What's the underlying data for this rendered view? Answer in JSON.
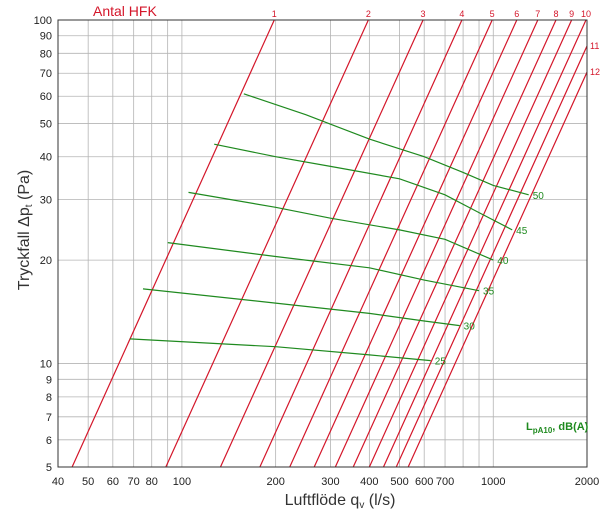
{
  "chart_data": {
    "type": "line",
    "title": "Antal HFK",
    "xlabel": "Luftflöde q",
    "xlabel_sub": "v",
    "xlabel_unit": " (l/s)",
    "ylabel": "Tryckfall Δp",
    "ylabel_sub": "t",
    "ylabel_unit": " (Pa)",
    "xscale": "log",
    "yscale": "log",
    "xlim": [
      40,
      2000
    ],
    "ylim": [
      5,
      100
    ],
    "grid": true,
    "x_ticks": [
      {
        "value": 40,
        "label": "40"
      },
      {
        "value": 50,
        "label": "50"
      },
      {
        "value": 60,
        "label": "60"
      },
      {
        "value": 70,
        "label": "70"
      },
      {
        "value": 80,
        "label": "80"
      },
      {
        "value": 100,
        "label": "100"
      },
      {
        "value": 200,
        "label": "200"
      },
      {
        "value": 300,
        "label": "300"
      },
      {
        "value": 400,
        "label": "400"
      },
      {
        "value": 500,
        "label": "500"
      },
      {
        "value": 600,
        "label": "600"
      },
      {
        "value": 700,
        "label": "700"
      },
      {
        "value": 1000,
        "label": "1000"
      },
      {
        "value": 2000,
        "label": "2000"
      }
    ],
    "x_minor_grid": [
      90,
      800,
      900
    ],
    "y_ticks": [
      5,
      6,
      7,
      8,
      9,
      10,
      20,
      30,
      40,
      50,
      60,
      70,
      80,
      90,
      100
    ],
    "colors": {
      "red": "#d4162a",
      "green": "#1f8a1f",
      "grid": "#b4b4b4",
      "axis": "#333333"
    },
    "red_series": [
      {
        "name": "1",
        "x1": 44.4,
        "y1": 5,
        "x2": 198,
        "y2": 100
      },
      {
        "name": "2",
        "x1": 88.8,
        "y1": 5,
        "x2": 397,
        "y2": 100
      },
      {
        "name": "3",
        "x1": 133,
        "y1": 5,
        "x2": 595,
        "y2": 100
      },
      {
        "name": "4",
        "x1": 178,
        "y1": 5,
        "x2": 793,
        "y2": 100
      },
      {
        "name": "5",
        "x1": 222,
        "y1": 5,
        "x2": 992,
        "y2": 100
      },
      {
        "name": "6",
        "x1": 266,
        "y1": 5,
        "x2": 1190,
        "y2": 100
      },
      {
        "name": "7",
        "x1": 311,
        "y1": 5,
        "x2": 1390,
        "y2": 100
      },
      {
        "name": "8",
        "x1": 355,
        "y1": 5,
        "x2": 1590,
        "y2": 100
      },
      {
        "name": "9",
        "x1": 400,
        "y1": 5,
        "x2": 1785,
        "y2": 100
      },
      {
        "name": "10",
        "x1": 444,
        "y1": 5,
        "x2": 1985,
        "y2": 100
      },
      {
        "name": "11",
        "x1": 488,
        "y1": 5,
        "x2": 2000,
        "y2": 84
      },
      {
        "name": "12",
        "x1": 533,
        "y1": 5,
        "x2": 2000,
        "y2": 70.5
      }
    ],
    "green_series": [
      {
        "name": "50",
        "points": [
          [
            158,
            61
          ],
          [
            250,
            53
          ],
          [
            400,
            45
          ],
          [
            600,
            40
          ],
          [
            800,
            36
          ],
          [
            1000,
            33
          ],
          [
            1300,
            31
          ]
        ]
      },
      {
        "name": "45",
        "points": [
          [
            127,
            43.5
          ],
          [
            200,
            40
          ],
          [
            300,
            37.5
          ],
          [
            500,
            34.5
          ],
          [
            700,
            31
          ],
          [
            900,
            27.5
          ],
          [
            1150,
            24.5
          ]
        ]
      },
      {
        "name": "40",
        "points": [
          [
            105,
            31.5
          ],
          [
            200,
            28.5
          ],
          [
            300,
            26.5
          ],
          [
            500,
            24.5
          ],
          [
            700,
            23
          ],
          [
            1000,
            20
          ]
        ]
      },
      {
        "name": "35",
        "points": [
          [
            90,
            22.5
          ],
          [
            200,
            20.5
          ],
          [
            400,
            19
          ],
          [
            600,
            17.5
          ],
          [
            900,
            16.3
          ]
        ]
      },
      {
        "name": "30",
        "points": [
          [
            75,
            16.5
          ],
          [
            200,
            15
          ],
          [
            400,
            14
          ],
          [
            600,
            13.3
          ],
          [
            780,
            12.9
          ]
        ]
      },
      {
        "name": "25",
        "points": [
          [
            68,
            11.8
          ],
          [
            200,
            11.2
          ],
          [
            400,
            10.6
          ],
          [
            630,
            10.2
          ]
        ]
      }
    ],
    "legend_note": {
      "main": "L",
      "sub": "pA10",
      "rest": ", dB(A)"
    }
  }
}
